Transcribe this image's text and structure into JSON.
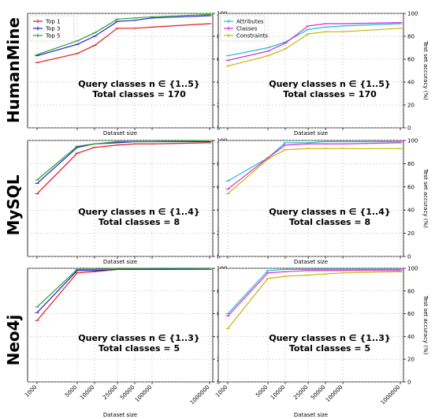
{
  "row_labels": [
    "HumanMine",
    "MySQL",
    "Neo4j"
  ],
  "chart_data": [
    {
      "type": "line",
      "dataset": "HumanMine",
      "panel": "top-k",
      "x": [
        1000,
        5000,
        10000,
        25000,
        50000,
        100000,
        1000000
      ],
      "xlabel": "Dataset size",
      "ylabel": "",
      "ylim": [
        0,
        100
      ],
      "yticks": [
        0,
        20,
        40,
        60,
        80,
        100
      ],
      "legend": "top-left",
      "annotation": [
        "Query classes n ∈ {1..5}",
        "Total classes = 170"
      ],
      "series": [
        {
          "name": "Top 1",
          "color": "#e41a1c",
          "values": [
            57,
            65,
            72,
            87,
            87,
            88,
            91
          ]
        },
        {
          "name": "Top 3",
          "color": "#1f1fd6",
          "values": [
            63,
            73,
            80,
            93,
            94,
            96,
            98
          ]
        },
        {
          "name": "Top 5",
          "color": "#2ca02c",
          "values": [
            64,
            76,
            83,
            95,
            96,
            97,
            99
          ]
        }
      ]
    },
    {
      "type": "line",
      "dataset": "HumanMine",
      "panel": "attributes",
      "x": [
        1000,
        5000,
        10000,
        25000,
        50000,
        100000,
        1000000
      ],
      "xlabel": "Dataset size",
      "ylabel": "Test set accuracy (%)",
      "ylim": [
        0,
        100
      ],
      "yticks": [
        0,
        20,
        40,
        60,
        80,
        100
      ],
      "legend": "top-left",
      "annotation": [
        "Query classes n ∈ {1..5}",
        "Total classes = 170"
      ],
      "series": [
        {
          "name": "Attributes",
          "color": "#17becf",
          "values": [
            63,
            70,
            75,
            86,
            88,
            89,
            91
          ]
        },
        {
          "name": "Classes",
          "color": "#d62ad6",
          "values": [
            59,
            67,
            74,
            89,
            91,
            91,
            92
          ]
        },
        {
          "name": "Constraints",
          "color": "#c8b400",
          "values": [
            54,
            63,
            69,
            82,
            84,
            84,
            87
          ]
        }
      ]
    },
    {
      "type": "line",
      "dataset": "MySQL",
      "panel": "top-k",
      "x": [
        1000,
        5000,
        10000,
        25000,
        50000,
        100000,
        1000000
      ],
      "xlabel": "Dataset size",
      "ylabel": "",
      "ylim": [
        0,
        100
      ],
      "yticks": [
        0,
        20,
        40,
        60,
        80,
        100
      ],
      "legend": "none",
      "annotation": [
        "Query classes n ∈ {1..4}",
        "Total classes = 8"
      ],
      "series": [
        {
          "name": "Top 1",
          "color": "#e41a1c",
          "values": [
            54,
            89,
            94,
            96,
            97,
            97,
            98
          ]
        },
        {
          "name": "Top 3",
          "color": "#1f1fd6",
          "values": [
            63,
            94,
            97,
            98,
            99,
            99,
            99
          ]
        },
        {
          "name": "Top 5",
          "color": "#2ca02c",
          "values": [
            66,
            95,
            97,
            99,
            99,
            99,
            100
          ]
        }
      ]
    },
    {
      "type": "line",
      "dataset": "MySQL",
      "panel": "attributes",
      "x": [
        1000,
        5000,
        10000,
        25000,
        50000,
        100000,
        1000000
      ],
      "xlabel": "Dataset size",
      "ylabel": "Test set accuracy (%)",
      "ylim": [
        0,
        100
      ],
      "yticks": [
        0,
        20,
        40,
        60,
        80,
        100
      ],
      "legend": "none",
      "annotation": [
        "Query classes n ∈ {1..4}",
        "Total classes = 8"
      ],
      "series": [
        {
          "name": "Attributes",
          "color": "#17becf",
          "values": [
            65,
            85,
            98,
            98,
            99,
            99,
            99
          ]
        },
        {
          "name": "Classes",
          "color": "#d62ad6",
          "values": [
            58,
            85,
            96,
            97,
            97,
            97,
            98
          ]
        },
        {
          "name": "Constraints",
          "color": "#c8b400",
          "values": [
            54,
            84,
            92,
            93,
            93,
            93,
            93
          ]
        }
      ]
    },
    {
      "type": "line",
      "dataset": "Neo4j",
      "panel": "top-k",
      "x": [
        1000,
        5000,
        10000,
        25000,
        50000,
        100000,
        1000000
      ],
      "xlabel": "Dataset size",
      "ylabel": "",
      "ylim": [
        0,
        100
      ],
      "yticks": [
        0,
        20,
        40,
        60,
        80,
        100
      ],
      "legend": "none",
      "annotation": [
        "Query classes n ∈ {1..3}",
        "Total classes = 5"
      ],
      "series": [
        {
          "name": "Top 1",
          "color": "#e41a1c",
          "values": [
            54,
            96,
            97,
            99,
            99,
            99,
            99
          ]
        },
        {
          "name": "Top 3",
          "color": "#1f1fd6",
          "values": [
            61,
            98,
            98,
            99,
            99,
            99,
            100
          ]
        },
        {
          "name": "Top 5",
          "color": "#2ca02c",
          "values": [
            66,
            99,
            99,
            100,
            100,
            100,
            100
          ]
        }
      ]
    },
    {
      "type": "line",
      "dataset": "Neo4j",
      "panel": "attributes",
      "x": [
        1000,
        5000,
        10000,
        25000,
        50000,
        100000,
        1000000
      ],
      "xlabel": "Dataset size",
      "ylabel": "Test set accuracy (%)",
      "ylim": [
        0,
        100
      ],
      "yticks": [
        0,
        20,
        40,
        60,
        80,
        100
      ],
      "legend": "none",
      "annotation": [
        "Query classes n ∈ {1..3}",
        "Total classes = 5"
      ],
      "series": [
        {
          "name": "Attributes",
          "color": "#17becf",
          "values": [
            60,
            98,
            99,
            99,
            99,
            99,
            99
          ]
        },
        {
          "name": "Classes",
          "color": "#d62ad6",
          "values": [
            58,
            96,
            97,
            98,
            98,
            98,
            98
          ]
        },
        {
          "name": "Constraints",
          "color": "#c8b400",
          "values": [
            47,
            91,
            93,
            94,
            95,
            96,
            97
          ]
        }
      ]
    }
  ]
}
